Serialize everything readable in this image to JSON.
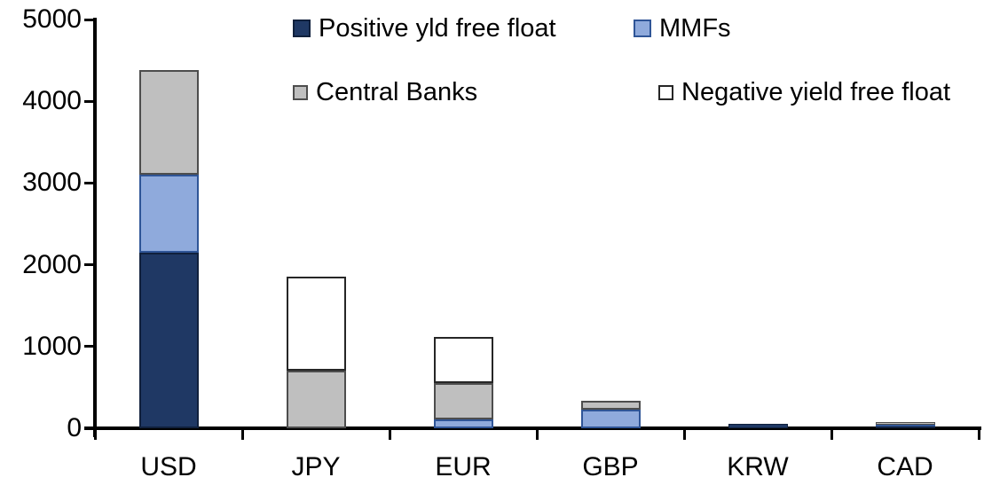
{
  "chart_data": {
    "type": "bar",
    "stacked": true,
    "title": "",
    "xlabel": "",
    "ylabel": "",
    "categories": [
      "USD",
      "JPY",
      "EUR",
      "GBP",
      "KRW",
      "CAD"
    ],
    "series": [
      {
        "name": "Positive yld free float",
        "color": "#1F3864",
        "border_color": "#10203C",
        "values": [
          2150,
          0,
          0,
          0,
          50,
          25
        ]
      },
      {
        "name": "MMFs",
        "color": "#8FAADC",
        "border_color": "#2F5597",
        "values": [
          950,
          0,
          110,
          230,
          0,
          20
        ]
      },
      {
        "name": "Central Banks",
        "color": "#BFBFBF",
        "border_color": "#4D4D4D",
        "values": [
          1280,
          700,
          440,
          110,
          0,
          30
        ]
      },
      {
        "name": "Negative yield free float",
        "color": "#FFFFFF",
        "border_color": "#262626",
        "values": [
          0,
          1150,
          570,
          0,
          0,
          0
        ]
      }
    ],
    "totals": [
      4380,
      1850,
      1120,
      340,
      50,
      75
    ],
    "ylim": [
      0,
      5000
    ],
    "ytick_interval": 1000,
    "ytick_labels": [
      "0",
      "1000",
      "2000",
      "3000",
      "4000",
      "5000"
    ],
    "grid": false,
    "legend_position": "top",
    "axis_color": "#000000",
    "background_color": "#FFFFFF"
  }
}
